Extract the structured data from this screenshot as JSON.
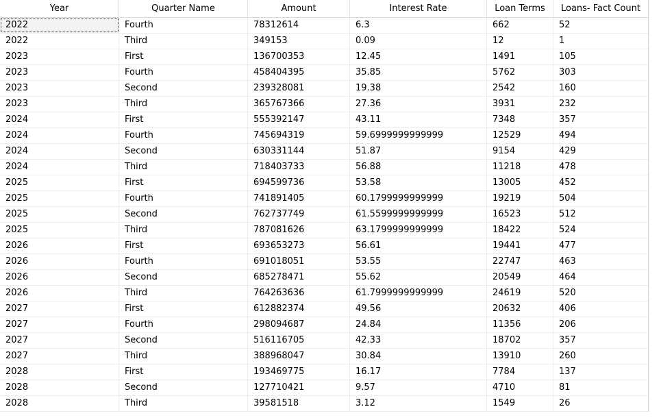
{
  "table": {
    "columns": [
      "Year",
      "Quarter Name",
      "Amount",
      "Interest Rate",
      "Loan Terms",
      "Loans- Fact Count"
    ],
    "rows": [
      [
        "2022",
        "Fourth",
        "78312614",
        "6.3",
        "662",
        "52"
      ],
      [
        "2022",
        "Third",
        "349153",
        "0.09",
        "12",
        "1"
      ],
      [
        "2023",
        "First",
        "136700353",
        "12.45",
        "1491",
        "105"
      ],
      [
        "2023",
        "Fourth",
        "458404395",
        "35.85",
        "5762",
        "303"
      ],
      [
        "2023",
        "Second",
        "239328081",
        "19.38",
        "2542",
        "160"
      ],
      [
        "2023",
        "Third",
        "365767366",
        "27.36",
        "3931",
        "232"
      ],
      [
        "2024",
        "First",
        "555392147",
        "43.11",
        "7348",
        "357"
      ],
      [
        "2024",
        "Fourth",
        "745694319",
        "59.6999999999999",
        "12529",
        "494"
      ],
      [
        "2024",
        "Second",
        "630331144",
        "51.87",
        "9154",
        "429"
      ],
      [
        "2024",
        "Third",
        "718403733",
        "56.88",
        "11218",
        "478"
      ],
      [
        "2025",
        "First",
        "694599736",
        "53.58",
        "13005",
        "452"
      ],
      [
        "2025",
        "Fourth",
        "741891405",
        "60.1799999999999",
        "19219",
        "504"
      ],
      [
        "2025",
        "Second",
        "762737749",
        "61.5599999999999",
        "16523",
        "512"
      ],
      [
        "2025",
        "Third",
        "787081626",
        "63.1799999999999",
        "18422",
        "524"
      ],
      [
        "2026",
        "First",
        "693653273",
        "56.61",
        "19441",
        "477"
      ],
      [
        "2026",
        "Fourth",
        "691018051",
        "53.55",
        "22747",
        "463"
      ],
      [
        "2026",
        "Second",
        "685278471",
        "55.62",
        "20549",
        "464"
      ],
      [
        "2026",
        "Third",
        "764263636",
        "61.7999999999999",
        "24619",
        "520"
      ],
      [
        "2027",
        "First",
        "612882374",
        "49.56",
        "20632",
        "406"
      ],
      [
        "2027",
        "Fourth",
        "298094687",
        "24.84",
        "11356",
        "206"
      ],
      [
        "2027",
        "Second",
        "516116705",
        "42.33",
        "18702",
        "357"
      ],
      [
        "2027",
        "Third",
        "388968047",
        "30.84",
        "13910",
        "260"
      ],
      [
        "2028",
        "First",
        "193469775",
        "16.17",
        "7784",
        "137"
      ],
      [
        "2028",
        "Second",
        "127710421",
        "9.57",
        "4710",
        "81"
      ],
      [
        "2028",
        "Third",
        "39581518",
        "3.12",
        "1549",
        "26"
      ]
    ]
  }
}
